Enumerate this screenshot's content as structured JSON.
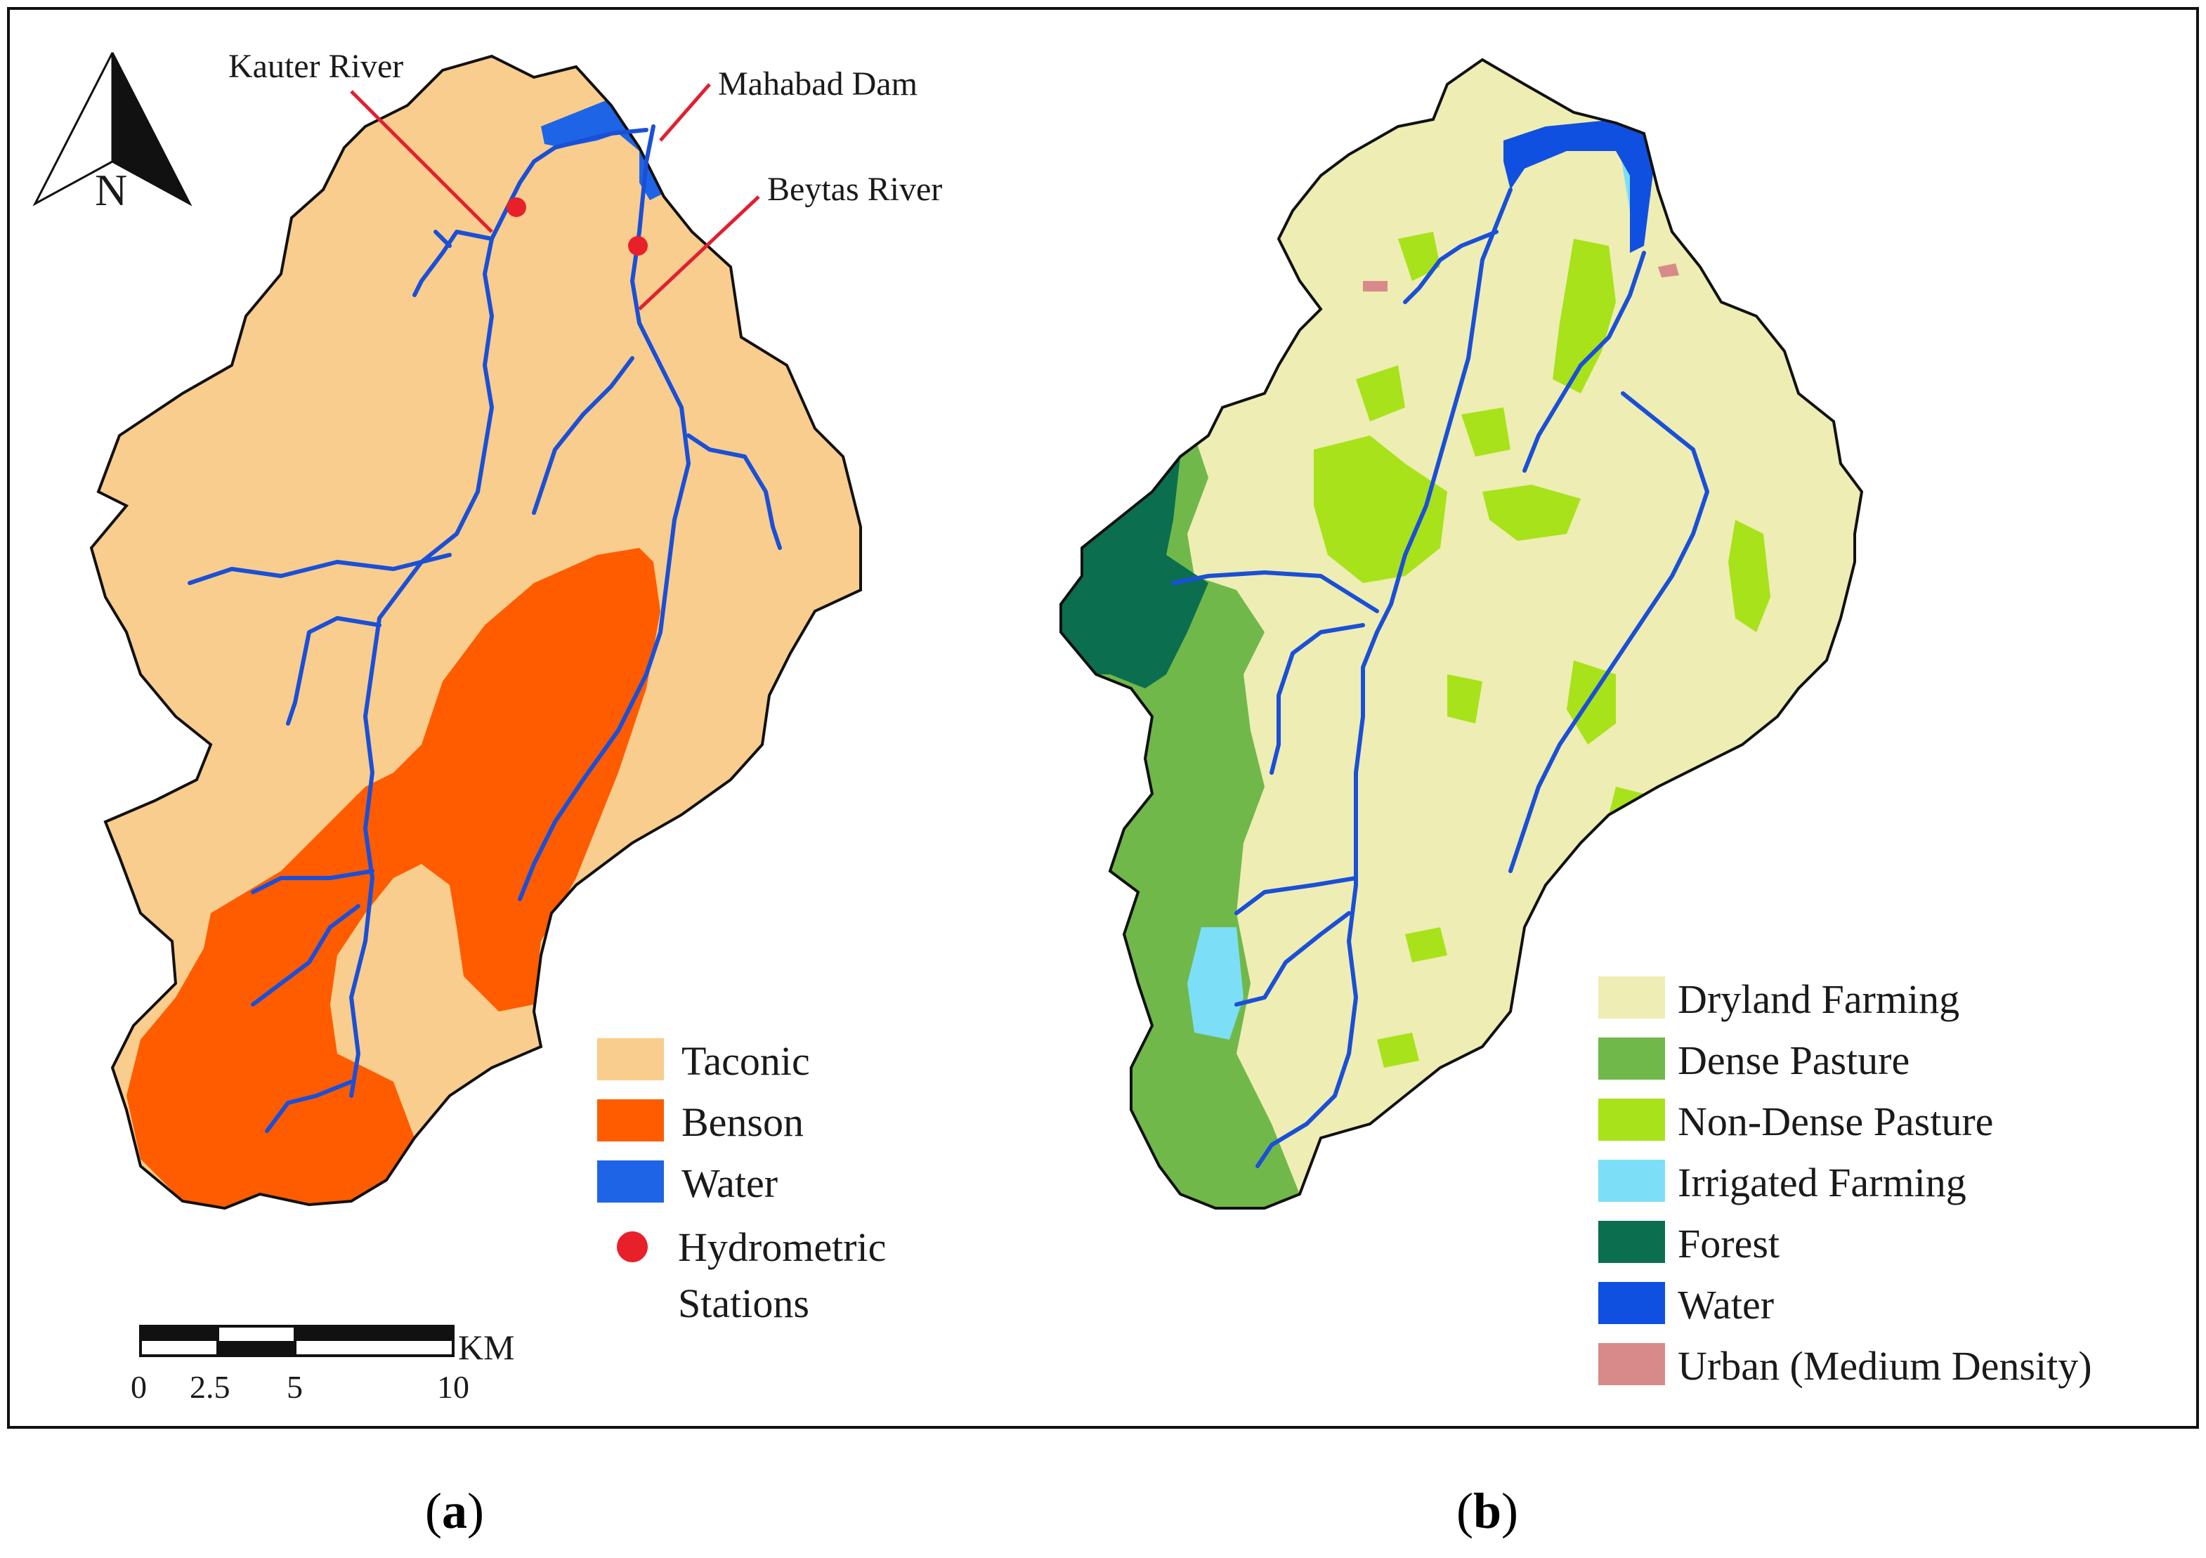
{
  "colors": {
    "taconic": "#F9CD8D",
    "benson": "#FF5C00",
    "water_a": "#1E64E6",
    "station": "#E8202A",
    "leader": "#E02030",
    "dryland": "#EEEDB3",
    "dense_pasture": "#70B84A",
    "non_dense_pasture": "#A8E21A",
    "irrigated": "#7CDFF7",
    "forest": "#0B6E4F",
    "water_b": "#1050E0",
    "urban": "#D88A8A",
    "river": "#1A4FD8",
    "border": "#111111"
  },
  "panel_a": {
    "north_label": "N",
    "callouts": {
      "kauter": "Kauter River",
      "mahabad": "Mahabad Dam",
      "beytas": "Beytas River"
    },
    "legend": [
      {
        "label": "Taconic",
        "symbol": "swatch",
        "color_key": "taconic"
      },
      {
        "label": "Benson",
        "symbol": "swatch",
        "color_key": "benson"
      },
      {
        "label": "Water",
        "symbol": "swatch",
        "color_key": "water_a"
      },
      {
        "label": "Hydrometric",
        "label2": "Stations",
        "symbol": "dot",
        "color_key": "station"
      }
    ],
    "scale_bar": {
      "unit": "KM",
      "ticks": [
        "0",
        "2.5",
        "5",
        "10"
      ]
    }
  },
  "panel_b": {
    "legend": [
      {
        "label": "Dryland Farming",
        "color_key": "dryland"
      },
      {
        "label": "Dense Pasture",
        "color_key": "dense_pasture"
      },
      {
        "label": "Non-Dense Pasture",
        "color_key": "non_dense_pasture"
      },
      {
        "label": "Irrigated Farming",
        "color_key": "irrigated"
      },
      {
        "label": "Forest",
        "color_key": "forest"
      },
      {
        "label": "Water",
        "color_key": "water_b"
      },
      {
        "label": "Urban (Medium Density)",
        "color_key": "urban"
      }
    ]
  },
  "captions": {
    "a": "a",
    "b": "b"
  }
}
